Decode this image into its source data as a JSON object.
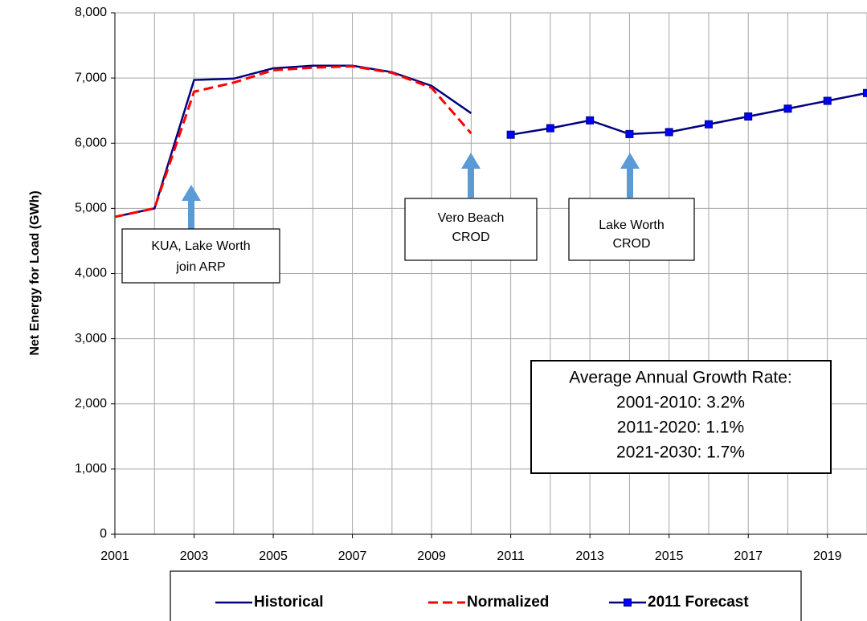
{
  "chart_data": {
    "type": "line",
    "y_label": "Net Energy for Load (GWh)",
    "x": [
      2001,
      2002,
      2003,
      2004,
      2005,
      2006,
      2007,
      2008,
      2009,
      2010,
      2011,
      2012,
      2013,
      2014,
      2015,
      2016,
      2017,
      2018,
      2019,
      2020
    ],
    "xlim": [
      2001,
      2020
    ],
    "xticks": [
      2001,
      2003,
      2005,
      2007,
      2009,
      2011,
      2013,
      2015,
      2017,
      2019
    ],
    "ylim": [
      0,
      8000
    ],
    "yticks": [
      0,
      {
        "value": 1000,
        "label": "1,000"
      },
      {
        "value": 2000,
        "label": "2,000"
      },
      {
        "value": 3000,
        "label": "3,000"
      },
      {
        "value": 4000,
        "label": "4,000"
      },
      {
        "value": 5000,
        "label": "5,000"
      },
      {
        "value": 6000,
        "label": "6,000"
      },
      {
        "value": 7000,
        "label": "7,000"
      },
      {
        "value": 8000,
        "label": "8,000"
      }
    ],
    "grid": true,
    "series": [
      {
        "name": "Historical",
        "color": "#000080",
        "style": "solid",
        "marker": false,
        "values": [
          4870,
          5000,
          6970,
          6990,
          7150,
          7190,
          7190,
          7090,
          6880,
          6460,
          null,
          null,
          null,
          null,
          null,
          null,
          null,
          null,
          null,
          null
        ]
      },
      {
        "name": "Normalized",
        "color": "#ff0000",
        "style": "dashed",
        "marker": false,
        "values": [
          4870,
          5000,
          6790,
          6930,
          7120,
          7160,
          7180,
          7080,
          6850,
          6150,
          null,
          null,
          null,
          null,
          null,
          null,
          null,
          null,
          null,
          null
        ]
      },
      {
        "name": "2011 Forecast",
        "color": "#000080",
        "style": "solid",
        "marker": true,
        "marker_color": "#0000ff",
        "values": [
          null,
          null,
          null,
          null,
          null,
          null,
          null,
          null,
          null,
          null,
          6130,
          6230,
          6350,
          6140,
          6170,
          6290,
          6410,
          6530,
          6650,
          6770
        ]
      }
    ],
    "annotations": [
      {
        "lines": [
          "KUA, Lake Worth",
          "join ARP"
        ]
      },
      {
        "lines": [
          "Vero Beach",
          "CROD"
        ]
      },
      {
        "lines": [
          "Lake Worth",
          "CROD"
        ]
      }
    ],
    "growth_box": {
      "title": "Average Annual Growth Rate:",
      "lines": [
        "2001-2010: 3.2%",
        "2011-2020: 1.1%",
        "2021-2030: 1.7%"
      ]
    }
  }
}
